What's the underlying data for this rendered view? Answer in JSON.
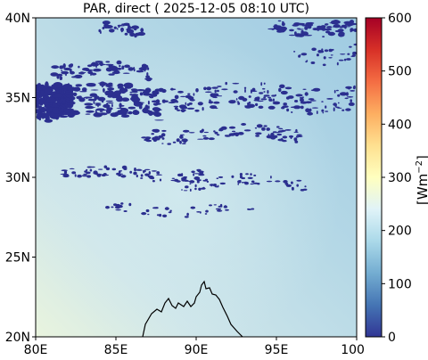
{
  "title": "PAR, direct ( 2025-12-05 08:10 UTC)",
  "map": {
    "lon_range": [
      80,
      100
    ],
    "lat_range": [
      20,
      40
    ],
    "x_ticks": [
      "80E",
      "85E",
      "90E",
      "95E",
      "100E"
    ],
    "y_ticks": [
      "20N",
      "25N",
      "30N",
      "35N",
      "40N"
    ]
  },
  "colorbar": {
    "min": 0,
    "max": 600,
    "ticks": [
      "0",
      "100",
      "200",
      "300",
      "400",
      "500",
      "600"
    ],
    "label": "[Wm$^{-2}$]",
    "colormap": [
      "#313695",
      "#4575b4",
      "#74add1",
      "#abd9e9",
      "#e0f3f8",
      "#ffffbf",
      "#fee090",
      "#fdae61",
      "#f46d43",
      "#d73027",
      "#a50026"
    ]
  },
  "colors": {
    "no_data_cloud": "#2b2f8f",
    "coastline": "#000000"
  }
}
